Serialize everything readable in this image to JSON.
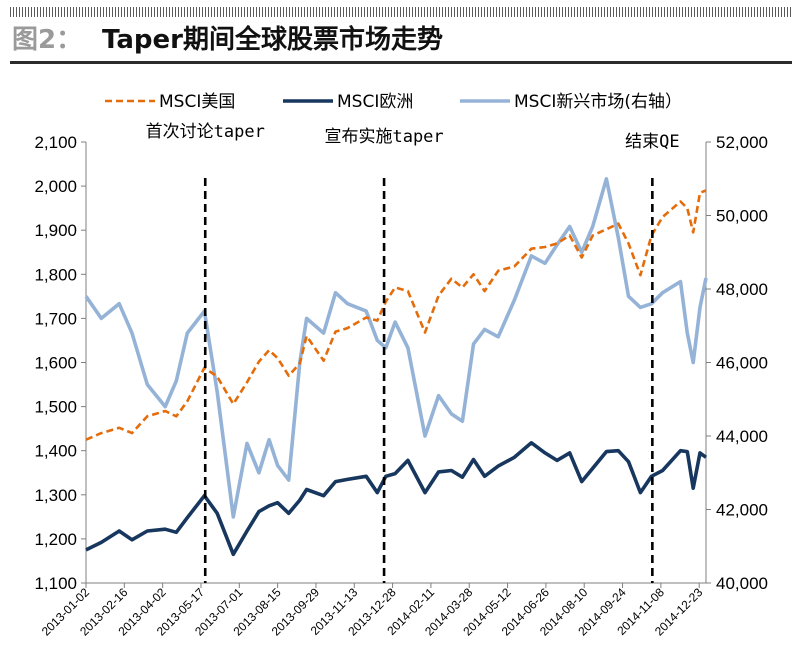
{
  "header": {
    "figure_no": "图2：",
    "title": "Taper期间全球股票市场走势"
  },
  "colors": {
    "us": "#e46c0a",
    "europe": "#17375e",
    "em": "#95b3d7"
  },
  "chart_data": {
    "type": "line",
    "title": "Taper期间全球股票市场走势",
    "legend": {
      "placement": "top",
      "entries": [
        "MSCI美国",
        "MSCI欧洲",
        "MSCI新兴市场(右轴）"
      ]
    },
    "ylim": [
      1100,
      2100
    ],
    "yticks": [
      "1,100",
      "1,200",
      "1,300",
      "1,400",
      "1,500",
      "1,600",
      "1,700",
      "1,800",
      "1,900",
      "2,000",
      "2,100"
    ],
    "y2lim": [
      40000,
      52000
    ],
    "y2ticks": [
      "40,000",
      "42,000",
      "44,000",
      "46,000",
      "48,000",
      "50,000",
      "52,000"
    ],
    "xrange": [
      "2013-01-02",
      "2014-12-31"
    ],
    "xticks": [
      "2013-01-02",
      "2013-02-16",
      "2013-04-02",
      "2013-05-17",
      "2013-07-01",
      "2013-08-15",
      "2013-09-29",
      "2013-11-13",
      "2013-12-28",
      "2014-02-11",
      "2014-03-28",
      "2014-05-12",
      "2014-06-26",
      "2014-08-10",
      "2014-09-24",
      "2014-11-08",
      "2014-12-23"
    ],
    "grid": false,
    "events": [
      {
        "date": "2013-05-22",
        "label": "首次讨论taper"
      },
      {
        "date": "2013-12-18",
        "label": "宣布实施taper"
      },
      {
        "date": "2014-10-29",
        "label": "结束QE"
      }
    ],
    "series": [
      {
        "name": "MSCI美国",
        "axis": "left",
        "style": "dashed",
        "points": [
          [
            "2013-01-02",
            1425
          ],
          [
            "2013-01-20",
            1440
          ],
          [
            "2013-02-10",
            1452
          ],
          [
            "2013-02-25",
            1440
          ],
          [
            "2013-03-15",
            1478
          ],
          [
            "2013-04-05",
            1490
          ],
          [
            "2013-04-18",
            1478
          ],
          [
            "2013-05-01",
            1512
          ],
          [
            "2013-05-21",
            1588
          ],
          [
            "2013-06-05",
            1568
          ],
          [
            "2013-06-24",
            1506
          ],
          [
            "2013-07-10",
            1555
          ],
          [
            "2013-07-24",
            1602
          ],
          [
            "2013-08-05",
            1628
          ],
          [
            "2013-08-15",
            1610
          ],
          [
            "2013-08-28",
            1570
          ],
          [
            "2013-09-10",
            1598
          ],
          [
            "2013-09-18",
            1660
          ],
          [
            "2013-10-08",
            1604
          ],
          [
            "2013-10-22",
            1670
          ],
          [
            "2013-11-05",
            1678
          ],
          [
            "2013-11-27",
            1702
          ],
          [
            "2013-12-10",
            1695
          ],
          [
            "2013-12-20",
            1738
          ],
          [
            "2013-12-31",
            1770
          ],
          [
            "2014-01-15",
            1762
          ],
          [
            "2014-02-04",
            1668
          ],
          [
            "2014-02-20",
            1752
          ],
          [
            "2014-03-07",
            1790
          ],
          [
            "2014-03-20",
            1770
          ],
          [
            "2014-04-02",
            1800
          ],
          [
            "2014-04-15",
            1762
          ],
          [
            "2014-05-01",
            1808
          ],
          [
            "2014-05-20",
            1818
          ],
          [
            "2014-06-09",
            1858
          ],
          [
            "2014-06-25",
            1862
          ],
          [
            "2014-07-09",
            1870
          ],
          [
            "2014-07-24",
            1888
          ],
          [
            "2014-08-07",
            1838
          ],
          [
            "2014-08-20",
            1888
          ],
          [
            "2014-09-05",
            1902
          ],
          [
            "2014-09-19",
            1915
          ],
          [
            "2014-10-01",
            1870
          ],
          [
            "2014-10-15",
            1798
          ],
          [
            "2014-10-28",
            1888
          ],
          [
            "2014-11-10",
            1930
          ],
          [
            "2014-12-01",
            1965
          ],
          [
            "2014-12-09",
            1950
          ],
          [
            "2014-12-16",
            1895
          ],
          [
            "2014-12-24",
            1985
          ],
          [
            "2014-12-31",
            1990
          ]
        ]
      },
      {
        "name": "MSCI欧洲",
        "axis": "left",
        "style": "solid",
        "points": [
          [
            "2013-01-02",
            1175
          ],
          [
            "2013-01-20",
            1192
          ],
          [
            "2013-02-10",
            1218
          ],
          [
            "2013-02-25",
            1198
          ],
          [
            "2013-03-15",
            1218
          ],
          [
            "2013-04-05",
            1222
          ],
          [
            "2013-04-18",
            1215
          ],
          [
            "2013-05-01",
            1248
          ],
          [
            "2013-05-21",
            1298
          ],
          [
            "2013-06-05",
            1258
          ],
          [
            "2013-06-24",
            1165
          ],
          [
            "2013-07-10",
            1218
          ],
          [
            "2013-07-24",
            1262
          ],
          [
            "2013-08-05",
            1275
          ],
          [
            "2013-08-15",
            1282
          ],
          [
            "2013-08-28",
            1258
          ],
          [
            "2013-09-10",
            1288
          ],
          [
            "2013-09-18",
            1312
          ],
          [
            "2013-10-08",
            1298
          ],
          [
            "2013-10-22",
            1330
          ],
          [
            "2013-11-05",
            1335
          ],
          [
            "2013-11-27",
            1342
          ],
          [
            "2013-12-10",
            1305
          ],
          [
            "2013-12-20",
            1342
          ],
          [
            "2013-12-31",
            1348
          ],
          [
            "2014-01-15",
            1378
          ],
          [
            "2014-02-04",
            1305
          ],
          [
            "2014-02-20",
            1352
          ],
          [
            "2014-03-07",
            1355
          ],
          [
            "2014-03-20",
            1340
          ],
          [
            "2014-04-02",
            1380
          ],
          [
            "2014-04-15",
            1342
          ],
          [
            "2014-05-01",
            1365
          ],
          [
            "2014-05-20",
            1385
          ],
          [
            "2014-06-09",
            1418
          ],
          [
            "2014-06-25",
            1395
          ],
          [
            "2014-07-09",
            1378
          ],
          [
            "2014-07-24",
            1395
          ],
          [
            "2014-08-07",
            1330
          ],
          [
            "2014-08-20",
            1360
          ],
          [
            "2014-09-05",
            1398
          ],
          [
            "2014-09-19",
            1400
          ],
          [
            "2014-10-01",
            1375
          ],
          [
            "2014-10-15",
            1305
          ],
          [
            "2014-10-28",
            1342
          ],
          [
            "2014-11-10",
            1355
          ],
          [
            "2014-12-01",
            1400
          ],
          [
            "2014-12-09",
            1398
          ],
          [
            "2014-12-16",
            1315
          ],
          [
            "2014-12-24",
            1395
          ],
          [
            "2014-12-31",
            1385
          ]
        ]
      },
      {
        "name": "MSCI新兴市场(右轴）",
        "axis": "right",
        "style": "solid",
        "points": [
          [
            "2013-01-02",
            47800
          ],
          [
            "2013-01-20",
            47200
          ],
          [
            "2013-02-10",
            47600
          ],
          [
            "2013-02-25",
            46800
          ],
          [
            "2013-03-15",
            45400
          ],
          [
            "2013-04-05",
            44800
          ],
          [
            "2013-04-18",
            45500
          ],
          [
            "2013-05-01",
            46800
          ],
          [
            "2013-05-21",
            47400
          ],
          [
            "2013-06-05",
            45200
          ],
          [
            "2013-06-24",
            41800
          ],
          [
            "2013-07-10",
            43800
          ],
          [
            "2013-07-24",
            43000
          ],
          [
            "2013-08-05",
            43900
          ],
          [
            "2013-08-15",
            43200
          ],
          [
            "2013-08-28",
            42800
          ],
          [
            "2013-09-10",
            46000
          ],
          [
            "2013-09-18",
            47200
          ],
          [
            "2013-10-08",
            46800
          ],
          [
            "2013-10-22",
            47900
          ],
          [
            "2013-11-05",
            47600
          ],
          [
            "2013-11-27",
            47400
          ],
          [
            "2013-12-10",
            46600
          ],
          [
            "2013-12-20",
            46400
          ],
          [
            "2013-12-31",
            47100
          ],
          [
            "2014-01-15",
            46400
          ],
          [
            "2014-02-04",
            44000
          ],
          [
            "2014-02-20",
            45100
          ],
          [
            "2014-03-07",
            44600
          ],
          [
            "2014-03-20",
            44400
          ],
          [
            "2014-04-02",
            46500
          ],
          [
            "2014-04-15",
            46900
          ],
          [
            "2014-05-01",
            46700
          ],
          [
            "2014-05-20",
            47700
          ],
          [
            "2014-06-09",
            48900
          ],
          [
            "2014-06-25",
            48700
          ],
          [
            "2014-07-09",
            49200
          ],
          [
            "2014-07-24",
            49700
          ],
          [
            "2014-08-07",
            49000
          ],
          [
            "2014-08-20",
            49700
          ],
          [
            "2014-09-05",
            51000
          ],
          [
            "2014-09-19",
            49400
          ],
          [
            "2014-10-01",
            47800
          ],
          [
            "2014-10-15",
            47500
          ],
          [
            "2014-10-28",
            47600
          ],
          [
            "2014-11-10",
            47900
          ],
          [
            "2014-12-01",
            48200
          ],
          [
            "2014-12-09",
            46800
          ],
          [
            "2014-12-16",
            46000
          ],
          [
            "2014-12-24",
            47500
          ],
          [
            "2014-12-31",
            48300
          ]
        ]
      }
    ]
  }
}
